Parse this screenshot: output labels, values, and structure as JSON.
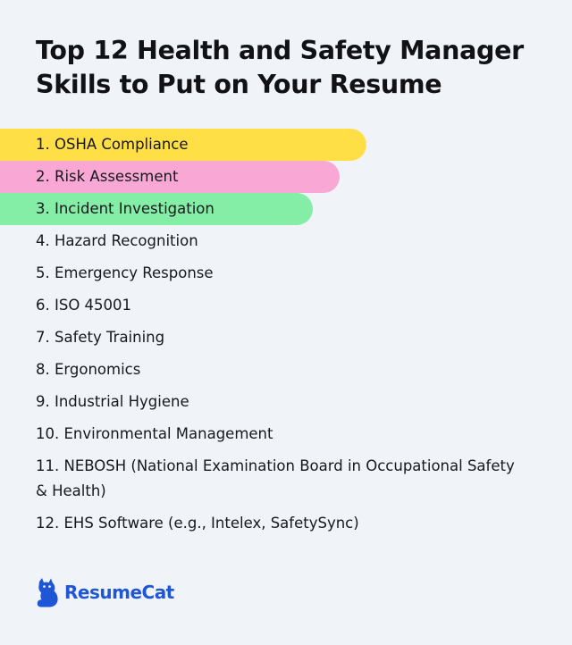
{
  "title": "Top 12 Health and Safety Manager Skills to Put on Your Resume",
  "skills": [
    {
      "label": "1. OSHA Compliance",
      "highlight": "#ffdf45"
    },
    {
      "label": "2. Risk Assessment",
      "highlight": "#f9a8d6"
    },
    {
      "label": "3. Incident Investigation",
      "highlight": "#84eea7"
    },
    {
      "label": "4. Hazard Recognition"
    },
    {
      "label": "5. Emergency Response"
    },
    {
      "label": "6. ISO 45001"
    },
    {
      "label": "7. Safety Training"
    },
    {
      "label": "8. Ergonomics"
    },
    {
      "label": "9. Industrial Hygiene"
    },
    {
      "label": "10. Environmental Management"
    },
    {
      "label": "11. NEBOSH (National Examination Board in Occupational Safety & Health)"
    },
    {
      "label": "12. EHS Software (e.g., Intelex, SafetySync)"
    }
  ],
  "brand": {
    "name": "ResumeCat",
    "icon": "cat-icon",
    "color": "#1f56d6"
  },
  "colors": {
    "background": "#f0f4f9",
    "text": "#111318"
  }
}
